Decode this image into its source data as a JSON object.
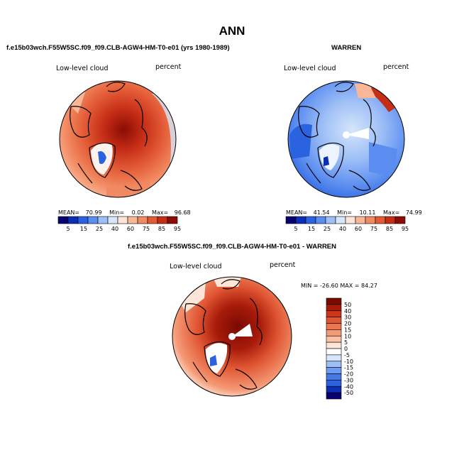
{
  "page": {
    "title": "ANN",
    "subtitle_left": "f.e15b03wch.F55W5SC.f09_f09.CLB-AGW4-HM-T0-e01 (yrs 1980-1989)",
    "subtitle_right": "WARREN",
    "subtitle_bottom": "f.e15b03wch.F55W5SC.f09_f09.CLB-AGW4-HM-T0-e01 - WARREN"
  },
  "colors": {
    "scale": [
      "#08006e",
      "#0b2fb4",
      "#2b62df",
      "#5b8df0",
      "#9dbef6",
      "#d6e6fb",
      "#fde6d8",
      "#f9b797",
      "#f18a62",
      "#e35b36",
      "#c52d16",
      "#8b0c04"
    ],
    "diff_scale": [
      "#08006e",
      "#0b2fb4",
      "#2b62df",
      "#4678e8",
      "#6d9af2",
      "#9dbef6",
      "#d6e6fb",
      "#ffffff",
      "#fde6d8",
      "#f9c0a3",
      "#f59a76",
      "#ec7650",
      "#e05532",
      "#cc3719",
      "#a81b0a",
      "#7a0a02"
    ]
  },
  "chart_data": [
    {
      "type": "heatmap",
      "projection": "north-polar-stereographic",
      "title": "Low-level cloud",
      "units": "percent",
      "legend_levels": [
        "5",
        "15",
        "25",
        "40",
        "60",
        "75",
        "85",
        "95"
      ],
      "stats": {
        "mean": "70.99",
        "min": "0.02",
        "max": "96.68"
      },
      "mean_label": "MEAN=",
      "min_label": "Min=",
      "max_label": "Max="
    },
    {
      "type": "heatmap",
      "projection": "north-polar-stereographic",
      "title": "Low-level cloud",
      "units": "percent",
      "legend_levels": [
        "5",
        "15",
        "25",
        "40",
        "60",
        "75",
        "85",
        "95"
      ],
      "stats": {
        "mean": "41.54",
        "min": "10.11",
        "max": "74.99"
      },
      "mean_label": "MEAN=",
      "min_label": "Min=",
      "max_label": "Max="
    },
    {
      "type": "heatmap",
      "projection": "north-polar-stereographic",
      "title": "Low-level cloud",
      "units": "percent",
      "minmax_text": "MIN = -26.60 MAX =  84.27",
      "stats": {
        "min": "-26.60",
        "max": "84.27"
      },
      "legend_levels": [
        "50",
        "40",
        "30",
        "20",
        "15",
        "10",
        "5",
        "0",
        "-5",
        "-10",
        "-15",
        "-20",
        "-30",
        "-40",
        "-50"
      ]
    }
  ]
}
